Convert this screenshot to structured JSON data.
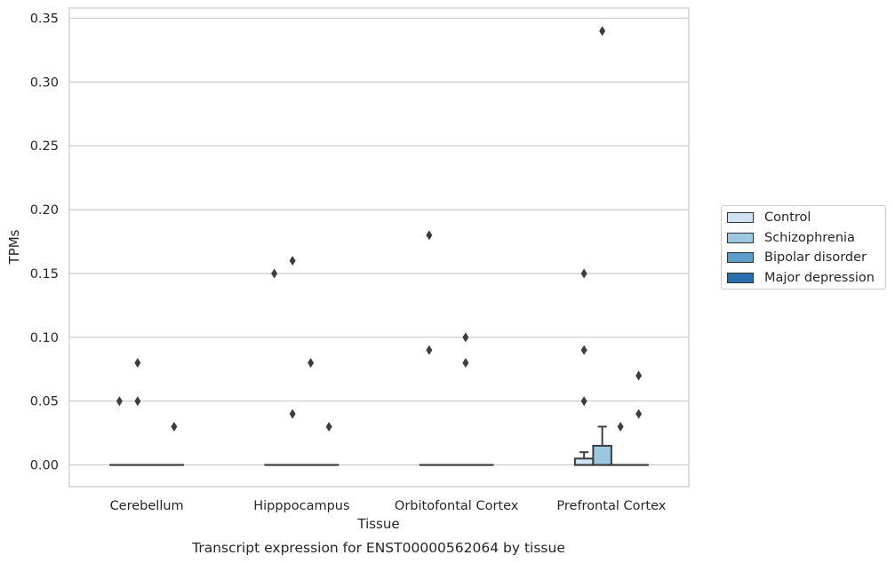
{
  "chart_data": {
    "type": "box",
    "title": "Transcript expression for ENST00000562064 by tissue",
    "xlabel": "Tissue",
    "ylabel": "TPMs",
    "ylim": [
      -0.017,
      0.358
    ],
    "yticks": [
      "0.00",
      "0.05",
      "0.10",
      "0.15",
      "0.20",
      "0.25",
      "0.30",
      "0.35"
    ],
    "ytick_values": [
      0,
      0.05,
      0.1,
      0.15,
      0.2,
      0.25,
      0.3,
      0.35
    ],
    "categories": [
      "Cerebellum",
      "Hipppocampus",
      "Orbitofontal Cortex",
      "Prefrontal Cortex"
    ],
    "grid": "horizontal",
    "legend_position": "right",
    "series": [
      {
        "name": "Control",
        "color": "#d1e2f2",
        "boxes": [
          {
            "q1": 0,
            "median": 0,
            "q3": 0,
            "whisker_low": 0,
            "whisker_high": 0,
            "outliers": [
              0.05
            ]
          },
          {
            "q1": 0,
            "median": 0,
            "q3": 0,
            "whisker_low": 0,
            "whisker_high": 0,
            "outliers": [
              0.15
            ]
          },
          {
            "q1": 0,
            "median": 0,
            "q3": 0,
            "whisker_low": 0,
            "whisker_high": 0,
            "outliers": [
              0.18,
              0.09
            ]
          },
          {
            "q1": 0,
            "median": 0,
            "q3": 0.005,
            "whisker_low": 0,
            "whisker_high": 0.01,
            "outliers": [
              0.15,
              0.09,
              0.05
            ]
          }
        ]
      },
      {
        "name": "Schizophrenia",
        "color": "#9dc7e0",
        "boxes": [
          {
            "q1": 0,
            "median": 0,
            "q3": 0,
            "whisker_low": 0,
            "whisker_high": 0,
            "outliers": [
              0.08,
              0.05
            ]
          },
          {
            "q1": 0,
            "median": 0,
            "q3": 0,
            "whisker_low": 0,
            "whisker_high": 0,
            "outliers": [
              0.16,
              0.04
            ]
          },
          {
            "q1": 0,
            "median": 0,
            "q3": 0,
            "whisker_low": 0,
            "whisker_high": 0,
            "outliers": []
          },
          {
            "q1": 0,
            "median": 0,
            "q3": 0.015,
            "whisker_low": 0,
            "whisker_high": 0.03,
            "outliers": [
              0.34
            ]
          }
        ]
      },
      {
        "name": "Bipolar disorder",
        "color": "#5a9ec9",
        "boxes": [
          {
            "q1": 0,
            "median": 0,
            "q3": 0,
            "whisker_low": 0,
            "whisker_high": 0,
            "outliers": []
          },
          {
            "q1": 0,
            "median": 0,
            "q3": 0,
            "whisker_low": 0,
            "whisker_high": 0,
            "outliers": [
              0.08
            ]
          },
          {
            "q1": 0,
            "median": 0,
            "q3": 0,
            "whisker_low": 0,
            "whisker_high": 0,
            "outliers": [
              0.1,
              0.08
            ]
          },
          {
            "q1": 0,
            "median": 0,
            "q3": 0,
            "whisker_low": 0,
            "whisker_high": 0,
            "outliers": [
              0.03
            ]
          }
        ]
      },
      {
        "name": "Major depression",
        "color": "#2870b1",
        "boxes": [
          {
            "q1": 0,
            "median": 0,
            "q3": 0,
            "whisker_low": 0,
            "whisker_high": 0,
            "outliers": [
              0.03
            ]
          },
          {
            "q1": 0,
            "median": 0,
            "q3": 0,
            "whisker_low": 0,
            "whisker_high": 0,
            "outliers": [
              0.03
            ]
          },
          {
            "q1": 0,
            "median": 0,
            "q3": 0,
            "whisker_low": 0,
            "whisker_high": 0,
            "outliers": []
          },
          {
            "q1": 0,
            "median": 0,
            "q3": 0,
            "whisker_low": 0,
            "whisker_high": 0,
            "outliers": [
              0.07,
              0.04
            ]
          }
        ]
      }
    ]
  }
}
